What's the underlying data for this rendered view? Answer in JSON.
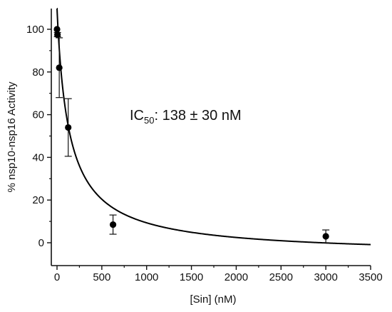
{
  "chart_data": {
    "type": "scatter",
    "xlabel": "[Sin] (nM)",
    "ylabel": "% nsp10-nsp16 Activity",
    "xlim": [
      -50,
      3500
    ],
    "ylim": [
      -8,
      110
    ],
    "xticks": [
      0,
      500,
      1000,
      1500,
      2000,
      2500,
      3000,
      3500
    ],
    "yticks": [
      0,
      20,
      40,
      60,
      80,
      100
    ],
    "grid": false,
    "annotation": {
      "prefix": "IC",
      "subscript": "50",
      "suffix": ": 138 ± 30 nM"
    },
    "series": [
      {
        "points": [
          {
            "x": 0,
            "y": 100,
            "err": 0
          },
          {
            "x": 5,
            "y": 97.5,
            "err": 1
          },
          {
            "x": 25,
            "y": 82,
            "err": 14
          },
          {
            "x": 125,
            "y": 54,
            "err": 13.5
          },
          {
            "x": 625,
            "y": 8.5,
            "err": 4.5
          },
          {
            "x": 3000,
            "y": 3,
            "err": 3
          }
        ]
      }
    ],
    "fit": {
      "model": "IC50",
      "ic50": 138,
      "top": 110,
      "hill": 0.95,
      "bottom": -6,
      "x_start": 0,
      "x_end": 3500
    }
  }
}
